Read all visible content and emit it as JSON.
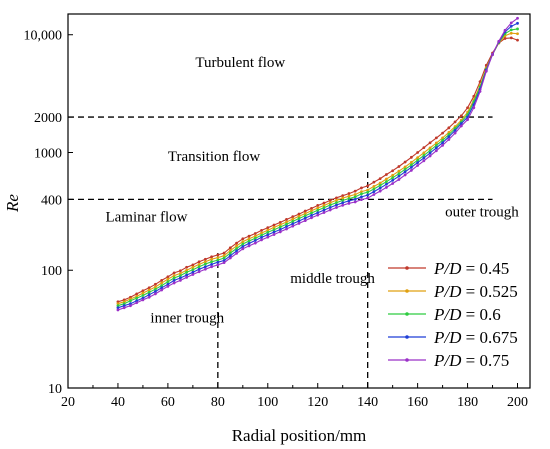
{
  "chart_data": {
    "type": "line",
    "title": "",
    "xlabel": "Radial position/mm",
    "ylabel": "Re",
    "xlim": [
      20,
      205
    ],
    "ylim": [
      10,
      15000
    ],
    "yscale": "log",
    "x_ticks": [
      20,
      40,
      60,
      80,
      100,
      120,
      140,
      160,
      180,
      200
    ],
    "y_ticks": [
      10,
      100,
      400,
      1000,
      2000,
      10000
    ],
    "y_tick_labels": [
      "10",
      "100",
      "400",
      "1000",
      "2000",
      "10,000"
    ],
    "grid": false,
    "legend_position": "bottom-right",
    "x": [
      40,
      42.5,
      45,
      47.5,
      50,
      52.5,
      55,
      57.5,
      60,
      62.5,
      65,
      67.5,
      70,
      72.5,
      75,
      77.5,
      80,
      82.5,
      85,
      87.5,
      90,
      92.5,
      95,
      97.5,
      100,
      102.5,
      105,
      107.5,
      110,
      112.5,
      115,
      117.5,
      120,
      122.5,
      125,
      127.5,
      130,
      132.5,
      135,
      137.5,
      140,
      142.5,
      145,
      147.5,
      150,
      152.5,
      155,
      157.5,
      160,
      162.5,
      165,
      167.5,
      170,
      172.5,
      175,
      177.5,
      180,
      182.5,
      185,
      187.5,
      190,
      192.5,
      195,
      197.5,
      200
    ],
    "series": [
      {
        "name": "P/D = 0.45",
        "color": "#c0392b",
        "values": [
          54,
          56,
          59,
          63,
          67,
          71,
          76,
          82,
          88,
          95,
          99,
          106,
          111,
          118,
          124,
          130,
          135,
          140,
          155,
          170,
          185,
          195,
          205,
          218,
          230,
          242,
          255,
          270,
          285,
          300,
          318,
          335,
          355,
          372,
          392,
          412,
          430,
          448,
          470,
          500,
          520,
          560,
          600,
          650,
          700,
          760,
          830,
          910,
          1000,
          1100,
          1210,
          1330,
          1460,
          1620,
          1820,
          2050,
          2400,
          3000,
          4000,
          5500,
          7000,
          8500,
          9300,
          9400,
          9000
        ]
      },
      {
        "name": "P/D = 0.525",
        "color": "#e0a010",
        "values": [
          52,
          54,
          57,
          60,
          64,
          68,
          72,
          78,
          84,
          90,
          94,
          100,
          106,
          112,
          118,
          124,
          128,
          133,
          147,
          161,
          175,
          185,
          195,
          207,
          219,
          231,
          243,
          257,
          272,
          287,
          303,
          320,
          338,
          355,
          374,
          393,
          410,
          425,
          440,
          465,
          480,
          515,
          550,
          595,
          640,
          695,
          755,
          825,
          905,
          995,
          1095,
          1205,
          1330,
          1480,
          1660,
          1880,
          2200,
          2800,
          3700,
          5200,
          6800,
          8500,
          9800,
          10300,
          10200
        ]
      },
      {
        "name": "P/D = 0.6",
        "color": "#2ecc40",
        "values": [
          50,
          52,
          55,
          58,
          61,
          65,
          69,
          74,
          80,
          86,
          90,
          96,
          101,
          107,
          113,
          118,
          122,
          127,
          140,
          153,
          167,
          177,
          187,
          198,
          210,
          221,
          233,
          246,
          260,
          275,
          290,
          306,
          323,
          340,
          358,
          375,
          392,
          406,
          420,
          445,
          460,
          490,
          525,
          565,
          610,
          660,
          720,
          785,
          860,
          945,
          1040,
          1150,
          1270,
          1420,
          1600,
          1820,
          2100,
          2700,
          3600,
          5100,
          6800,
          8600,
          10200,
          11000,
          11200
        ]
      },
      {
        "name": "P/D = 0.675",
        "color": "#1f3fd6",
        "values": [
          48,
          50,
          52,
          55,
          58,
          62,
          66,
          71,
          76,
          82,
          86,
          91,
          96,
          102,
          107,
          112,
          117,
          121,
          133,
          146,
          159,
          169,
          179,
          190,
          200,
          211,
          222,
          235,
          248,
          262,
          277,
          292,
          308,
          324,
          341,
          358,
          374,
          388,
          400,
          420,
          435,
          465,
          498,
          537,
          580,
          628,
          685,
          748,
          820,
          900,
          990,
          1095,
          1210,
          1360,
          1540,
          1760,
          2000,
          2550,
          3450,
          5000,
          6800,
          8700,
          10600,
          11800,
          12500
        ]
      },
      {
        "name": "P/D = 0.75",
        "color": "#9b30c8",
        "values": [
          46,
          48,
          50,
          53,
          56,
          59,
          63,
          68,
          73,
          78,
          82,
          87,
          92,
          97,
          102,
          107,
          111,
          116,
          127,
          139,
          152,
          161,
          170,
          181,
          191,
          201,
          212,
          224,
          237,
          250,
          264,
          279,
          294,
          309,
          325,
          341,
          356,
          370,
          380,
          398,
          410,
          440,
          470,
          505,
          545,
          590,
          645,
          705,
          775,
          850,
          935,
          1035,
          1150,
          1290,
          1460,
          1680,
          1900,
          2400,
          3300,
          4900,
          6800,
          8800,
          10900,
          12600,
          13800
        ]
      }
    ],
    "guides": [
      {
        "type": "horizontal",
        "value": 2000,
        "x_from": 20,
        "x_to": 190
      },
      {
        "type": "horizontal",
        "value": 400,
        "x_from": 20,
        "x_to": 190
      },
      {
        "type": "vertical",
        "value": 80,
        "y_from": 10,
        "y_to": 140
      },
      {
        "type": "vertical",
        "value": 140,
        "y_from": 10,
        "y_to": 720
      }
    ],
    "annotations": [
      {
        "text": "Turbulent flow",
        "x": 71,
        "y": 5300
      },
      {
        "text": "Transition flow",
        "x": 60,
        "y": 850
      },
      {
        "text": "Laminar flow",
        "x": 35,
        "y": 260
      },
      {
        "text": "inner trough",
        "x": 53,
        "y": 36
      },
      {
        "text": "middle trough",
        "x": 109,
        "y": 78
      },
      {
        "text": "outer trough",
        "x": 171,
        "y": 285
      }
    ]
  }
}
